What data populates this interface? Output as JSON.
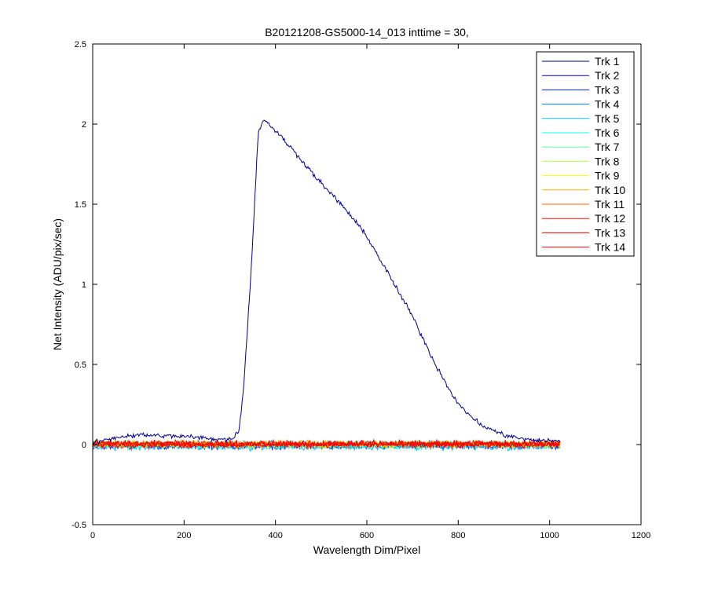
{
  "chart_data": {
    "type": "line",
    "title": "B20121208-GS5000-14_013 inttime = 30,",
    "xlabel": "Wavelength Dim/Pixel",
    "ylabel": "Net Intensity (ADU/pix/sec)",
    "xlim": [
      0,
      1200
    ],
    "ylim": [
      -0.5,
      2.5
    ],
    "xticks": [
      "0",
      "200",
      "400",
      "600",
      "800",
      "1000",
      "1200"
    ],
    "yticks": [
      "-0.5",
      "0",
      "0.5",
      "1",
      "1.5",
      "2",
      "2.5"
    ],
    "grid": false,
    "legend_position": "top-right",
    "x_range": [
      1,
      1024
    ],
    "series": [
      {
        "name": "Trk 1",
        "color": "#00008f",
        "shape": [
          [
            1,
            0.01
          ],
          [
            60,
            0.05
          ],
          [
            100,
            0.06
          ],
          [
            200,
            0.05
          ],
          [
            300,
            0.03
          ],
          [
            320,
            0.08
          ],
          [
            330,
            0.35
          ],
          [
            345,
            1.0
          ],
          [
            357,
            1.65
          ],
          [
            362,
            1.95
          ],
          [
            375,
            2.03
          ],
          [
            400,
            1.96
          ],
          [
            450,
            1.8
          ],
          [
            500,
            1.63
          ],
          [
            550,
            1.48
          ],
          [
            600,
            1.3
          ],
          [
            650,
            1.05
          ],
          [
            700,
            0.8
          ],
          [
            750,
            0.5
          ],
          [
            800,
            0.25
          ],
          [
            850,
            0.12
          ],
          [
            900,
            0.06
          ],
          [
            950,
            0.03
          ],
          [
            1024,
            0.02
          ]
        ],
        "noise": 0.015
      },
      {
        "name": "Trk 2",
        "color": "#0000d6",
        "baseline": 0.0,
        "noise": 0.02
      },
      {
        "name": "Trk 3",
        "color": "#0020ff",
        "baseline": -0.01,
        "noise": 0.02
      },
      {
        "name": "Trk 4",
        "color": "#0070ff",
        "baseline": 0.0,
        "noise": 0.02
      },
      {
        "name": "Trk 5",
        "color": "#00bfff",
        "baseline": -0.015,
        "noise": 0.02
      },
      {
        "name": "Trk 6",
        "color": "#10ffef",
        "baseline": -0.005,
        "noise": 0.02
      },
      {
        "name": "Trk 7",
        "color": "#60ff9f",
        "baseline": 0.0,
        "noise": 0.02
      },
      {
        "name": "Trk 8",
        "color": "#afff50",
        "baseline": 0.005,
        "noise": 0.02
      },
      {
        "name": "Trk 9",
        "color": "#ffff00",
        "baseline": 0.0,
        "noise": 0.02
      },
      {
        "name": "Trk 10",
        "color": "#ffb000",
        "baseline": 0.005,
        "noise": 0.02
      },
      {
        "name": "Trk 11",
        "color": "#ff6000",
        "baseline": 0.0,
        "noise": 0.02
      },
      {
        "name": "Trk 12",
        "color": "#ff1000",
        "baseline": 0.005,
        "noise": 0.02
      },
      {
        "name": "Trk 13",
        "color": "#df0000",
        "baseline": 0.0,
        "noise": 0.02
      },
      {
        "name": "Trk 14",
        "color": "#ff0000",
        "baseline": 0.005,
        "noise": 0.02
      }
    ]
  }
}
